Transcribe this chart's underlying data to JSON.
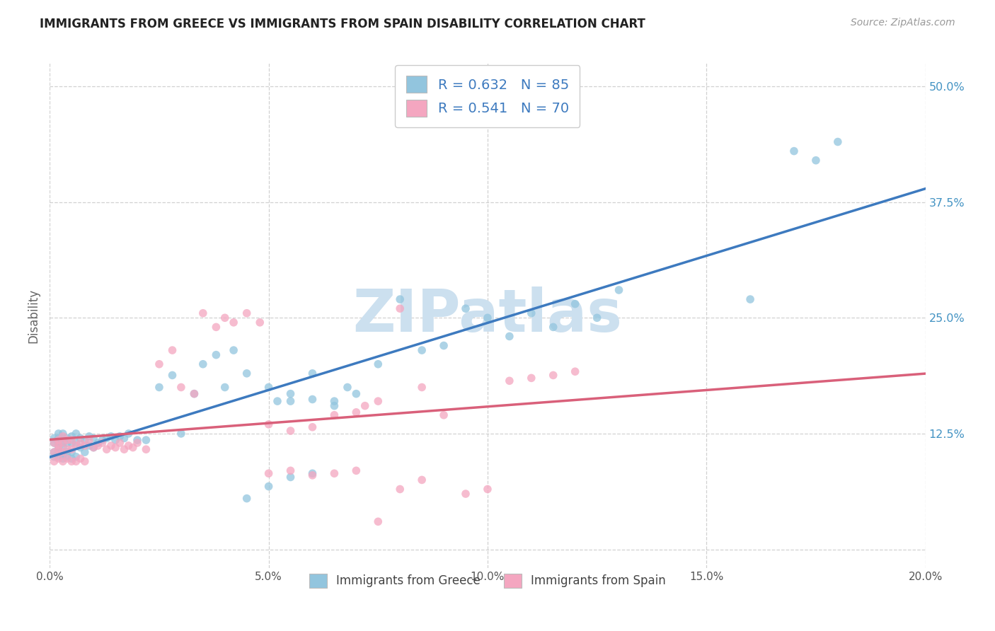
{
  "title": "IMMIGRANTS FROM GREECE VS IMMIGRANTS FROM SPAIN DISABILITY CORRELATION CHART",
  "source": "Source: ZipAtlas.com",
  "ylabel": "Disability",
  "x_range": [
    0.0,
    0.2
  ],
  "y_range": [
    -0.02,
    0.525
  ],
  "x_ticks": [
    0.0,
    0.05,
    0.1,
    0.15,
    0.2
  ],
  "x_tick_labels": [
    "0.0%",
    "5.0%",
    "10.0%",
    "15.0%",
    "20.0%"
  ],
  "y_ticks": [
    0.0,
    0.125,
    0.25,
    0.375,
    0.5
  ],
  "y_tick_labels": [
    "",
    "12.5%",
    "25.0%",
    "37.5%",
    "50.0%"
  ],
  "legend_r1": "R = 0.632",
  "legend_n1": "N = 85",
  "legend_r2": "R = 0.541",
  "legend_n2": "N = 70",
  "color_greece": "#92c5de",
  "color_spain": "#f4a6c0",
  "color_line_greece": "#3d7abf",
  "color_line_spain": "#d9607a",
  "watermark": "ZIPatlas",
  "watermark_color": "#cce0ef",
  "grid_color": "#cccccc",
  "title_color": "#222222",
  "source_color": "#999999",
  "ytick_color": "#4393c3",
  "xtick_color": "#555555",
  "greece_x": [
    0.001,
    0.001,
    0.001,
    0.001,
    0.002,
    0.002,
    0.002,
    0.002,
    0.002,
    0.002,
    0.002,
    0.003,
    0.003,
    0.003,
    0.003,
    0.003,
    0.003,
    0.004,
    0.004,
    0.004,
    0.004,
    0.005,
    0.005,
    0.005,
    0.005,
    0.006,
    0.006,
    0.006,
    0.007,
    0.007,
    0.008,
    0.008,
    0.009,
    0.009,
    0.01,
    0.01,
    0.011,
    0.012,
    0.013,
    0.014,
    0.015,
    0.016,
    0.017,
    0.018,
    0.02,
    0.022,
    0.025,
    0.028,
    0.03,
    0.033,
    0.035,
    0.038,
    0.04,
    0.042,
    0.045,
    0.05,
    0.052,
    0.055,
    0.06,
    0.065,
    0.068,
    0.07,
    0.075,
    0.08,
    0.085,
    0.09,
    0.095,
    0.1,
    0.105,
    0.11,
    0.115,
    0.12,
    0.125,
    0.13,
    0.16,
    0.17,
    0.175,
    0.18,
    0.065,
    0.06,
    0.055,
    0.045,
    0.05,
    0.055,
    0.06
  ],
  "greece_y": [
    0.1,
    0.105,
    0.115,
    0.12,
    0.1,
    0.105,
    0.11,
    0.115,
    0.118,
    0.12,
    0.125,
    0.098,
    0.102,
    0.11,
    0.115,
    0.12,
    0.125,
    0.1,
    0.105,
    0.115,
    0.12,
    0.098,
    0.105,
    0.115,
    0.122,
    0.1,
    0.115,
    0.125,
    0.11,
    0.12,
    0.105,
    0.118,
    0.112,
    0.122,
    0.11,
    0.12,
    0.115,
    0.118,
    0.12,
    0.122,
    0.118,
    0.122,
    0.12,
    0.125,
    0.118,
    0.118,
    0.175,
    0.188,
    0.125,
    0.168,
    0.2,
    0.21,
    0.175,
    0.215,
    0.19,
    0.175,
    0.16,
    0.168,
    0.19,
    0.16,
    0.175,
    0.168,
    0.2,
    0.27,
    0.215,
    0.22,
    0.26,
    0.25,
    0.23,
    0.255,
    0.24,
    0.265,
    0.25,
    0.28,
    0.27,
    0.43,
    0.42,
    0.44,
    0.155,
    0.162,
    0.16,
    0.055,
    0.068,
    0.078,
    0.082
  ],
  "spain_x": [
    0.001,
    0.001,
    0.001,
    0.002,
    0.002,
    0.002,
    0.002,
    0.003,
    0.003,
    0.003,
    0.003,
    0.004,
    0.004,
    0.004,
    0.005,
    0.005,
    0.005,
    0.006,
    0.006,
    0.007,
    0.007,
    0.008,
    0.008,
    0.009,
    0.01,
    0.011,
    0.012,
    0.013,
    0.014,
    0.015,
    0.016,
    0.017,
    0.018,
    0.019,
    0.02,
    0.022,
    0.025,
    0.028,
    0.03,
    0.033,
    0.035,
    0.038,
    0.04,
    0.042,
    0.045,
    0.048,
    0.05,
    0.055,
    0.06,
    0.065,
    0.07,
    0.072,
    0.075,
    0.08,
    0.085,
    0.09,
    0.095,
    0.1,
    0.105,
    0.11,
    0.115,
    0.12,
    0.05,
    0.055,
    0.06,
    0.065,
    0.07,
    0.075,
    0.08,
    0.085
  ],
  "spain_y": [
    0.095,
    0.105,
    0.115,
    0.098,
    0.108,
    0.112,
    0.118,
    0.095,
    0.105,
    0.115,
    0.122,
    0.098,
    0.108,
    0.118,
    0.095,
    0.108,
    0.118,
    0.095,
    0.112,
    0.098,
    0.115,
    0.095,
    0.112,
    0.118,
    0.11,
    0.112,
    0.115,
    0.108,
    0.112,
    0.11,
    0.115,
    0.108,
    0.112,
    0.11,
    0.115,
    0.108,
    0.2,
    0.215,
    0.175,
    0.168,
    0.255,
    0.24,
    0.25,
    0.245,
    0.255,
    0.245,
    0.135,
    0.128,
    0.132,
    0.145,
    0.148,
    0.155,
    0.16,
    0.26,
    0.175,
    0.145,
    0.06,
    0.065,
    0.182,
    0.185,
    0.188,
    0.192,
    0.082,
    0.085,
    0.08,
    0.082,
    0.085,
    0.03,
    0.065,
    0.075
  ]
}
